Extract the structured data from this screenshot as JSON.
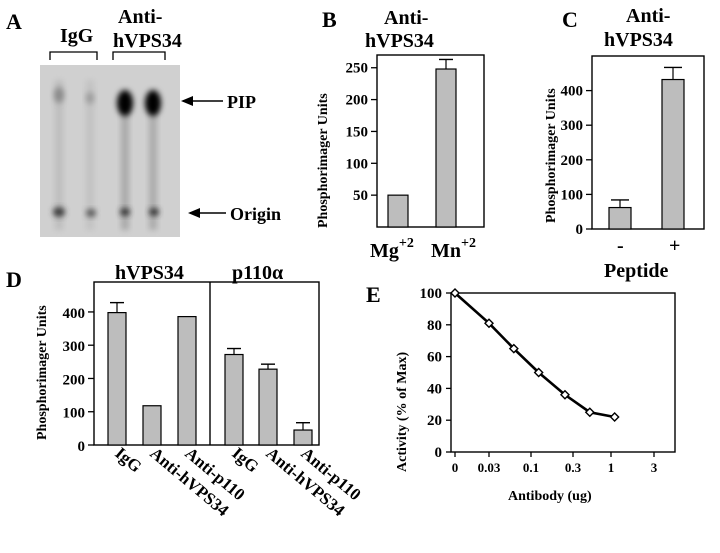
{
  "panels": {
    "A": {
      "letter": "A",
      "lane_groups": [
        "IgG",
        "Anti-",
        "hVPS34"
      ],
      "band_labels": [
        "PIP",
        "Origin"
      ]
    },
    "B": {
      "letter": "B",
      "header": [
        "Anti-",
        "hVPS34"
      ]
    },
    "C": {
      "letter": "C",
      "header": [
        "Anti-",
        "hVPS34"
      ],
      "xlabel": "Peptide"
    },
    "D": {
      "letter": "D",
      "groups": [
        "hVPS34",
        "p110α"
      ]
    },
    "E": {
      "letter": "E"
    }
  },
  "chart_data": [
    {
      "panel": "B",
      "type": "bar",
      "categories": [
        "Mg+2",
        "Mn+2"
      ],
      "values": [
        50,
        248
      ],
      "errors": [
        0,
        15
      ],
      "ylabel": "Phosphorimager Units",
      "yticks": [
        50,
        100,
        150,
        200,
        250
      ],
      "ylim": [
        0,
        270
      ]
    },
    {
      "panel": "C",
      "type": "bar",
      "categories": [
        "-",
        "+"
      ],
      "values": [
        62,
        432
      ],
      "errors": [
        22,
        35
      ],
      "ylabel": "Phosphorimager Units",
      "xlabel": "Peptide",
      "yticks": [
        0,
        100,
        200,
        300,
        400
      ],
      "ylim": [
        0,
        500
      ]
    },
    {
      "panel": "D",
      "type": "bar",
      "groups": [
        "hVPS34",
        "p110α"
      ],
      "categories": [
        "IgG",
        "Anti-hVPS34",
        "Anti-p110",
        "IgG",
        "Anti-hVPS34",
        "Anti-p110"
      ],
      "values": [
        398,
        118,
        386,
        272,
        228,
        45
      ],
      "errors": [
        30,
        0,
        0,
        18,
        15,
        22
      ],
      "ylabel": "Phosphorimager Units",
      "yticks": [
        0,
        100,
        200,
        300,
        400
      ],
      "ylim": [
        0,
        490
      ]
    },
    {
      "panel": "E",
      "type": "line",
      "x": [
        0,
        0.03,
        0.06,
        0.12,
        0.25,
        0.5,
        1.0
      ],
      "y": [
        100,
        81,
        65,
        50,
        36,
        25,
        22
      ],
      "xticks": [
        "0",
        "0.03",
        "0.1",
        "0.3",
        "1",
        "3"
      ],
      "yticks": [
        0,
        20,
        40,
        60,
        80,
        100
      ],
      "xlabel": "Antibody (ug)",
      "ylabel": "Activity (% of Max)",
      "ylim": [
        0,
        100
      ]
    }
  ]
}
